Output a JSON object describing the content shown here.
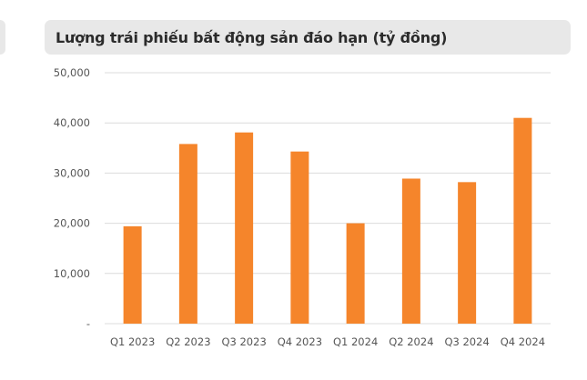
{
  "colors": {
    "bar": "#f5852b",
    "grid": "#dcdcdc",
    "title_bg": "#e8e8e8"
  },
  "chart_data": {
    "type": "bar",
    "title": "Lượng trái phiếu bất động sản đáo hạn (tỷ đồng)",
    "categories": [
      "Q1 2023",
      "Q2 2023",
      "Q3 2023",
      "Q4 2023",
      "Q1 2024",
      "Q2 2024",
      "Q3 2024",
      "Q4 2024"
    ],
    "values": [
      19400,
      35800,
      38100,
      34300,
      20000,
      28900,
      28200,
      41000
    ],
    "ylim": [
      0,
      50000
    ],
    "yticks": [
      0,
      10000,
      20000,
      30000,
      40000,
      50000
    ],
    "ytick_labels": [
      "-",
      "10,000",
      "20,000",
      "30,000",
      "40,000",
      "50,000"
    ],
    "grid": true,
    "legend": "none"
  }
}
